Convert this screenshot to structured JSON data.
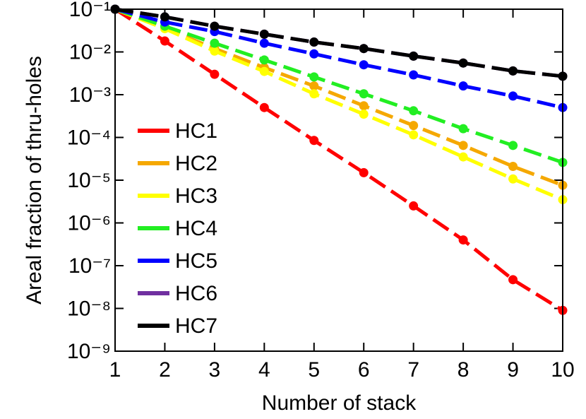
{
  "chart_data": {
    "type": "line",
    "xlabel": "Number of stack",
    "ylabel": "Areal fraction of thru-holes",
    "x": [
      1,
      2,
      3,
      4,
      5,
      6,
      7,
      8,
      9,
      10
    ],
    "xlim": [
      1,
      10
    ],
    "xticks": [
      1,
      2,
      3,
      4,
      5,
      6,
      7,
      8,
      9,
      10
    ],
    "ylim": [
      1e-09,
      0.1
    ],
    "yscale": "log",
    "yticks": [
      {
        "value": 1e-09,
        "label": "10⁻⁹"
      },
      {
        "value": 1e-08,
        "label": "10⁻⁸"
      },
      {
        "value": 1e-07,
        "label": "10⁻⁷"
      },
      {
        "value": 1e-06,
        "label": "10⁻⁶"
      },
      {
        "value": 1e-05,
        "label": "10⁻⁵"
      },
      {
        "value": 0.0001,
        "label": "10⁻⁴"
      },
      {
        "value": 0.001,
        "label": "10⁻³"
      },
      {
        "value": 0.01,
        "label": "10⁻²"
      },
      {
        "value": 0.1,
        "label": "10⁻¹"
      }
    ],
    "legend": "lower left",
    "series": [
      {
        "name": "HC1",
        "color": "#ff0000",
        "values": [
          0.1,
          0.018,
          0.003,
          0.0005,
          8.5e-05,
          1.5e-05,
          2.5e-06,
          4e-07,
          4.7e-08,
          9e-09
        ]
      },
      {
        "name": "HC2",
        "color": "#f5a800",
        "values": [
          0.1,
          0.036,
          0.012,
          0.0043,
          0.0016,
          0.00055,
          0.00019,
          6.5e-05,
          2.1e-05,
          7.6e-06
        ]
      },
      {
        "name": "HC3",
        "color": "#ffff00",
        "values": [
          0.1,
          0.035,
          0.0105,
          0.0035,
          0.00105,
          0.00035,
          0.000115,
          3.5e-05,
          1.07e-05,
          3.5e-06
        ]
      },
      {
        "name": "HC4",
        "color": "#22ee22",
        "values": [
          0.1,
          0.04,
          0.016,
          0.0065,
          0.0026,
          0.00105,
          0.00042,
          0.00016,
          6.5e-05,
          2.6e-05
        ]
      },
      {
        "name": "HC5",
        "color": "#0000ff",
        "values": [
          0.1,
          0.05,
          0.03,
          0.016,
          0.009,
          0.005,
          0.0029,
          0.0016,
          0.00093,
          0.0005
        ]
      },
      {
        "name": "HC6",
        "color": "#7030a0",
        "values": [
          0.1,
          0.066,
          0.04,
          0.026,
          0.017,
          0.012,
          0.008,
          0.0055,
          0.0036,
          0.0027
        ]
      },
      {
        "name": "HC7",
        "color": "#000000",
        "values": [
          0.1,
          0.066,
          0.04,
          0.026,
          0.017,
          0.012,
          0.008,
          0.0055,
          0.0036,
          0.0027
        ]
      }
    ]
  }
}
